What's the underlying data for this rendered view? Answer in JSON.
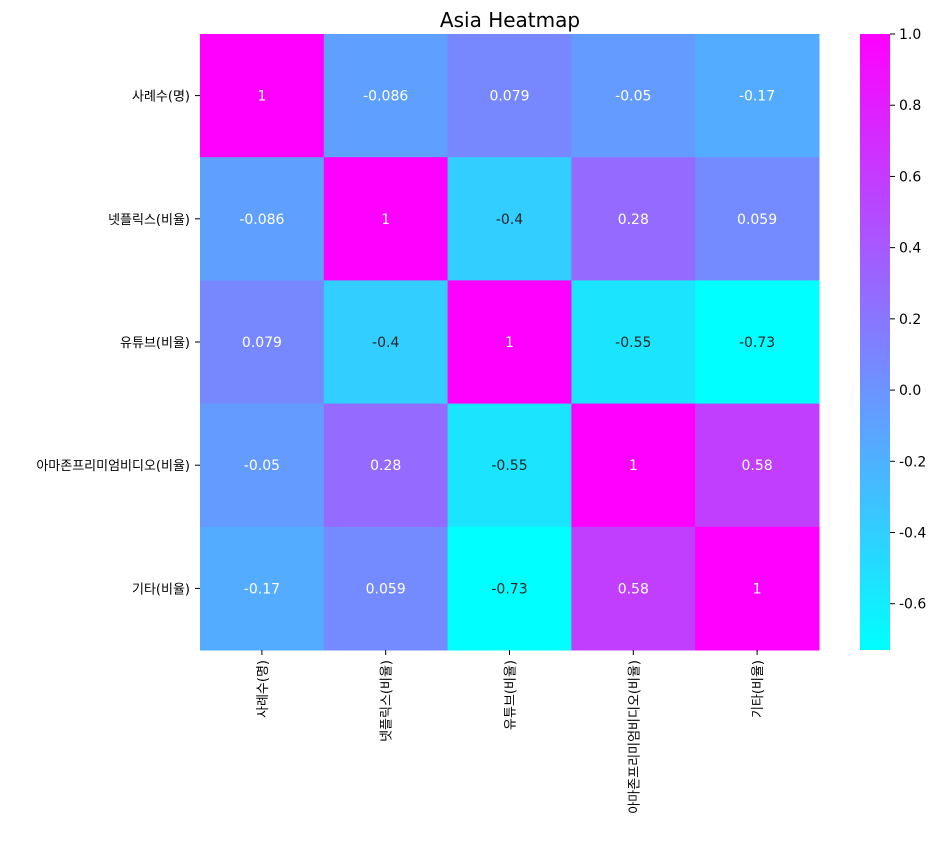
{
  "chart_data": {
    "type": "heatmap",
    "title": "Asia Heatmap",
    "row_labels": [
      "사례수(명)",
      "넷플릭스(비율)",
      "유튜브(비율)",
      "아마존프리미엄비디오(비율)",
      "기타(비율)"
    ],
    "col_labels": [
      "사례수(명)",
      "넷플릭스(비율)",
      "유튜브(비율)",
      "아마존프리미엄비디오(비율)",
      "기타(비율)"
    ],
    "values": [
      [
        1,
        -0.086,
        0.079,
        -0.05,
        -0.17
      ],
      [
        -0.086,
        1,
        -0.4,
        0.28,
        0.059
      ],
      [
        0.079,
        -0.4,
        1,
        -0.55,
        -0.73
      ],
      [
        -0.05,
        0.28,
        -0.55,
        1,
        0.58
      ],
      [
        -0.17,
        0.059,
        -0.73,
        0.58,
        1
      ]
    ],
    "value_labels": [
      [
        "1",
        "-0.086",
        "0.079",
        "-0.05",
        "-0.17"
      ],
      [
        "-0.086",
        "1",
        "-0.4",
        "0.28",
        "0.059"
      ],
      [
        "0.079",
        "-0.4",
        "1",
        "-0.55",
        "-0.73"
      ],
      [
        "-0.05",
        "0.28",
        "-0.55",
        "1",
        "0.58"
      ],
      [
        "-0.17",
        "0.059",
        "-0.73",
        "0.58",
        "1"
      ]
    ],
    "colormap": "cool",
    "colormap_low": "#00ffff",
    "colormap_high": "#ff00ff",
    "vmin": -0.73,
    "vmax": 1.0,
    "colorbar_ticks": [
      "1.0",
      "0.8",
      "0.6",
      "0.4",
      "0.2",
      "0.0",
      "-0.2",
      "-0.4",
      "-0.6"
    ],
    "colorbar_tick_values": [
      1.0,
      0.8,
      0.6,
      0.4,
      0.2,
      0.0,
      -0.2,
      -0.4,
      -0.6
    ],
    "colorbar_position": "right",
    "grid": false
  }
}
